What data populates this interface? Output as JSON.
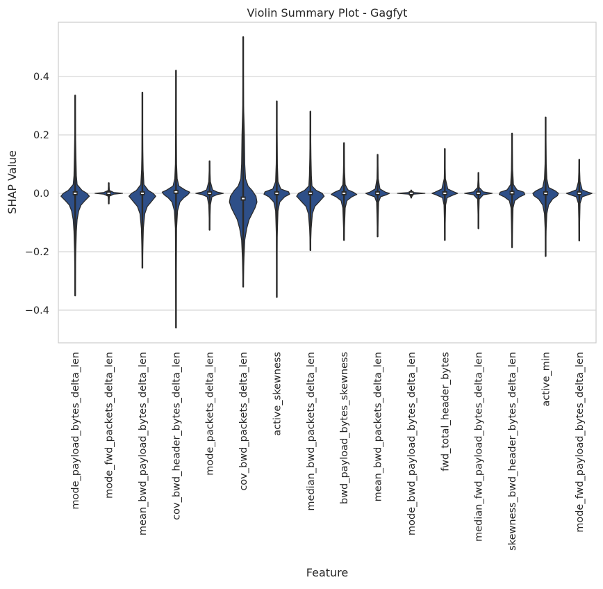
{
  "chart_data": {
    "type": "violin",
    "title": "Violin Summary Plot - Gagfyt",
    "xlabel": "Feature",
    "ylabel": "SHAP Value",
    "ylim": [
      -0.52,
      0.58
    ],
    "yticks": [
      0.4,
      0.2,
      0.0,
      -0.2,
      -0.4
    ],
    "ytick_labels": [
      "0.4",
      "0.2",
      "0.0",
      "−0.2",
      "−0.4"
    ],
    "grid": true,
    "violin_color": "#2e4f88",
    "line_color": "#2b2b2b",
    "series": [
      {
        "feature": "mode_payload_bytes_delta_len",
        "max": 0.335,
        "min": -0.35,
        "median": 0.0,
        "shape": [
          [
            0.335,
            0
          ],
          [
            0.2,
            0.002
          ],
          [
            0.12,
            0.004
          ],
          [
            0.06,
            0.006
          ],
          [
            0.03,
            0.01
          ],
          [
            0.01,
            0.035
          ],
          [
            0.0,
            0.06
          ],
          [
            -0.01,
            0.072
          ],
          [
            -0.025,
            0.05
          ],
          [
            -0.04,
            0.03
          ],
          [
            -0.06,
            0.018
          ],
          [
            -0.09,
            0.01
          ],
          [
            -0.13,
            0.006
          ],
          [
            -0.2,
            0.003
          ],
          [
            -0.3,
            0.001
          ],
          [
            -0.35,
            0
          ]
        ]
      },
      {
        "feature": "mode_fwd_packets_delta_len",
        "max": 0.035,
        "min": -0.035,
        "median": 0.0,
        "shape": [
          [
            0.035,
            0
          ],
          [
            0.01,
            0.003
          ],
          [
            0.003,
            0.025
          ],
          [
            0.0,
            0.07
          ],
          [
            -0.003,
            0.025
          ],
          [
            -0.01,
            0.003
          ],
          [
            -0.035,
            0
          ]
        ]
      },
      {
        "feature": "mean_bwd_payload_bytes_delta_len",
        "max": 0.345,
        "min": -0.255,
        "median": 0.0,
        "shape": [
          [
            0.345,
            0
          ],
          [
            0.15,
            0.002
          ],
          [
            0.08,
            0.004
          ],
          [
            0.03,
            0.008
          ],
          [
            0.01,
            0.03
          ],
          [
            0.0,
            0.055
          ],
          [
            -0.01,
            0.068
          ],
          [
            -0.025,
            0.05
          ],
          [
            -0.045,
            0.025
          ],
          [
            -0.07,
            0.012
          ],
          [
            -0.12,
            0.005
          ],
          [
            -0.2,
            0.002
          ],
          [
            -0.255,
            0
          ]
        ]
      },
      {
        "feature": "cov_bwd_header_bytes_delta_len",
        "max": 0.42,
        "min": -0.46,
        "median": 0.005,
        "shape": [
          [
            0.42,
            0
          ],
          [
            0.2,
            0.002
          ],
          [
            0.1,
            0.003
          ],
          [
            0.05,
            0.006
          ],
          [
            0.025,
            0.015
          ],
          [
            0.012,
            0.045
          ],
          [
            0.004,
            0.07
          ],
          [
            -0.005,
            0.06
          ],
          [
            -0.015,
            0.04
          ],
          [
            -0.03,
            0.02
          ],
          [
            -0.06,
            0.008
          ],
          [
            -0.12,
            0.003
          ],
          [
            -0.25,
            0.002
          ],
          [
            -0.46,
            0
          ]
        ]
      },
      {
        "feature": "mode_packets_delta_len",
        "max": 0.11,
        "min": -0.125,
        "median": 0.0,
        "shape": [
          [
            0.11,
            0
          ],
          [
            0.04,
            0.004
          ],
          [
            0.012,
            0.015
          ],
          [
            0.004,
            0.04
          ],
          [
            0.0,
            0.07
          ],
          [
            -0.004,
            0.04
          ],
          [
            -0.012,
            0.012
          ],
          [
            -0.04,
            0.004
          ],
          [
            -0.125,
            0
          ]
        ]
      },
      {
        "feature": "cov_bwd_packets_delta_len",
        "max": 0.535,
        "min": -0.32,
        "median": -0.018,
        "shape": [
          [
            0.535,
            0
          ],
          [
            0.3,
            0.002
          ],
          [
            0.2,
            0.006
          ],
          [
            0.1,
            0.008
          ],
          [
            0.05,
            0.012
          ],
          [
            0.025,
            0.025
          ],
          [
            0.01,
            0.045
          ],
          [
            -0.01,
            0.065
          ],
          [
            -0.03,
            0.07
          ],
          [
            -0.05,
            0.06
          ],
          [
            -0.07,
            0.045
          ],
          [
            -0.09,
            0.03
          ],
          [
            -0.12,
            0.018
          ],
          [
            -0.16,
            0.008
          ],
          [
            -0.22,
            0.004
          ],
          [
            -0.32,
            0
          ]
        ]
      },
      {
        "feature": "active_skewness",
        "max": 0.315,
        "min": -0.355,
        "median": 0.0,
        "shape": [
          [
            0.315,
            0
          ],
          [
            0.1,
            0.003
          ],
          [
            0.04,
            0.006
          ],
          [
            0.015,
            0.02
          ],
          [
            0.005,
            0.06
          ],
          [
            -0.003,
            0.065
          ],
          [
            -0.012,
            0.04
          ],
          [
            -0.03,
            0.015
          ],
          [
            -0.06,
            0.006
          ],
          [
            -0.15,
            0.002
          ],
          [
            -0.355,
            0
          ]
        ]
      },
      {
        "feature": "median_bwd_packets_delta_len",
        "max": 0.28,
        "min": -0.195,
        "median": 0.0,
        "shape": [
          [
            0.28,
            0
          ],
          [
            0.12,
            0.003
          ],
          [
            0.06,
            0.005
          ],
          [
            0.025,
            0.008
          ],
          [
            0.01,
            0.03
          ],
          [
            0.0,
            0.06
          ],
          [
            -0.01,
            0.07
          ],
          [
            -0.025,
            0.05
          ],
          [
            -0.045,
            0.022
          ],
          [
            -0.07,
            0.01
          ],
          [
            -0.12,
            0.004
          ],
          [
            -0.195,
            0
          ]
        ]
      },
      {
        "feature": "bwd_payload_bytes_skewness",
        "max": 0.172,
        "min": -0.16,
        "median": 0.0,
        "shape": [
          [
            0.172,
            0
          ],
          [
            0.07,
            0.003
          ],
          [
            0.03,
            0.006
          ],
          [
            0.012,
            0.02
          ],
          [
            0.003,
            0.05
          ],
          [
            -0.004,
            0.065
          ],
          [
            -0.012,
            0.04
          ],
          [
            -0.025,
            0.015
          ],
          [
            -0.05,
            0.006
          ],
          [
            -0.16,
            0
          ]
        ]
      },
      {
        "feature": "mean_bwd_packets_delta_len",
        "max": 0.132,
        "min": -0.148,
        "median": 0.0,
        "shape": [
          [
            0.132,
            0
          ],
          [
            0.05,
            0.003
          ],
          [
            0.015,
            0.012
          ],
          [
            0.004,
            0.04
          ],
          [
            0.0,
            0.06
          ],
          [
            -0.005,
            0.045
          ],
          [
            -0.012,
            0.015
          ],
          [
            -0.03,
            0.005
          ],
          [
            -0.148,
            0
          ]
        ]
      },
      {
        "feature": "mode_bwd_payload_bytes_delta_len",
        "max": 0.01,
        "min": -0.015,
        "median": 0.0,
        "shape": [
          [
            0.01,
            0
          ],
          [
            0.003,
            0.01
          ],
          [
            0.0,
            0.07
          ],
          [
            -0.003,
            0.01
          ],
          [
            -0.015,
            0
          ]
        ]
      },
      {
        "feature": "fwd_total_header_bytes",
        "max": 0.152,
        "min": -0.16,
        "median": 0.0,
        "shape": [
          [
            0.152,
            0
          ],
          [
            0.05,
            0.003
          ],
          [
            0.015,
            0.015
          ],
          [
            0.004,
            0.05
          ],
          [
            0.0,
            0.065
          ],
          [
            -0.005,
            0.045
          ],
          [
            -0.015,
            0.012
          ],
          [
            -0.04,
            0.004
          ],
          [
            -0.16,
            0
          ]
        ]
      },
      {
        "feature": "median_fwd_payload_bytes_delta_len",
        "max": 0.07,
        "min": -0.12,
        "median": 0.0,
        "shape": [
          [
            0.07,
            0
          ],
          [
            0.02,
            0.004
          ],
          [
            0.005,
            0.025
          ],
          [
            0.0,
            0.07
          ],
          [
            -0.005,
            0.025
          ],
          [
            -0.02,
            0.004
          ],
          [
            -0.12,
            0
          ]
        ]
      },
      {
        "feature": "skewness_bwd_header_bytes_delta_len",
        "max": 0.205,
        "min": -0.185,
        "median": 0.002,
        "shape": [
          [
            0.205,
            0
          ],
          [
            0.08,
            0.003
          ],
          [
            0.03,
            0.007
          ],
          [
            0.012,
            0.025
          ],
          [
            0.004,
            0.06
          ],
          [
            -0.004,
            0.065
          ],
          [
            -0.012,
            0.04
          ],
          [
            -0.025,
            0.014
          ],
          [
            -0.05,
            0.005
          ],
          [
            -0.185,
            0
          ]
        ]
      },
      {
        "feature": "active_min",
        "max": 0.26,
        "min": -0.215,
        "median": 0.0,
        "shape": [
          [
            0.26,
            0
          ],
          [
            0.1,
            0.003
          ],
          [
            0.05,
            0.006
          ],
          [
            0.02,
            0.015
          ],
          [
            0.008,
            0.05
          ],
          [
            0.0,
            0.065
          ],
          [
            -0.008,
            0.06
          ],
          [
            -0.02,
            0.035
          ],
          [
            -0.04,
            0.015
          ],
          [
            -0.07,
            0.006
          ],
          [
            -0.13,
            0.002
          ],
          [
            -0.215,
            0
          ]
        ]
      },
      {
        "feature": "mode_fwd_payload_bytes_delta_len",
        "max": 0.115,
        "min": -0.162,
        "median": 0.0,
        "shape": [
          [
            0.115,
            0
          ],
          [
            0.04,
            0.004
          ],
          [
            0.012,
            0.015
          ],
          [
            0.004,
            0.045
          ],
          [
            0.0,
            0.065
          ],
          [
            -0.005,
            0.045
          ],
          [
            -0.012,
            0.015
          ],
          [
            -0.035,
            0.004
          ],
          [
            -0.162,
            0
          ]
        ]
      }
    ]
  }
}
